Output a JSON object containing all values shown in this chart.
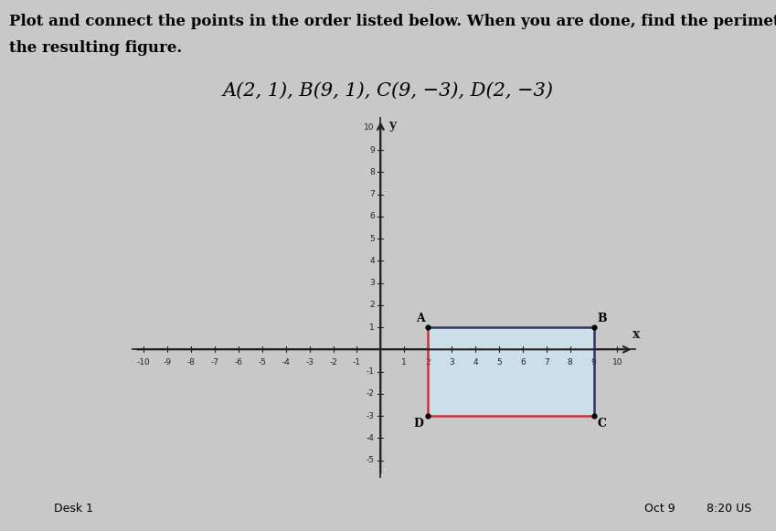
{
  "title_line1": "Plot and connect the points in the order listed below. When you are done, find the perimeter of",
  "title_line2": "the resulting figure.",
  "points_label": "A(2, 1), B(9, 1), C(9, −3), D(2, −3)",
  "points": {
    "A": [
      2,
      1
    ],
    "B": [
      9,
      1
    ],
    "C": [
      9,
      -3
    ],
    "D": [
      2,
      -3
    ]
  },
  "xlim": [
    -10.5,
    10.8
  ],
  "ylim": [
    -5.8,
    10.5
  ],
  "grid_color": "#c8c8c8",
  "axis_color": "#222222",
  "rect_fill_color": "#cce4f0",
  "rect_edge_color_dark": "#333366",
  "rect_edge_color_red": "#cc3333",
  "background_color": "#c8c8c8",
  "plot_bg_color": "#e8e8e8",
  "taskbar_color": "#00cccc",
  "title_fontsize": 12,
  "points_text_fontsize": 15
}
